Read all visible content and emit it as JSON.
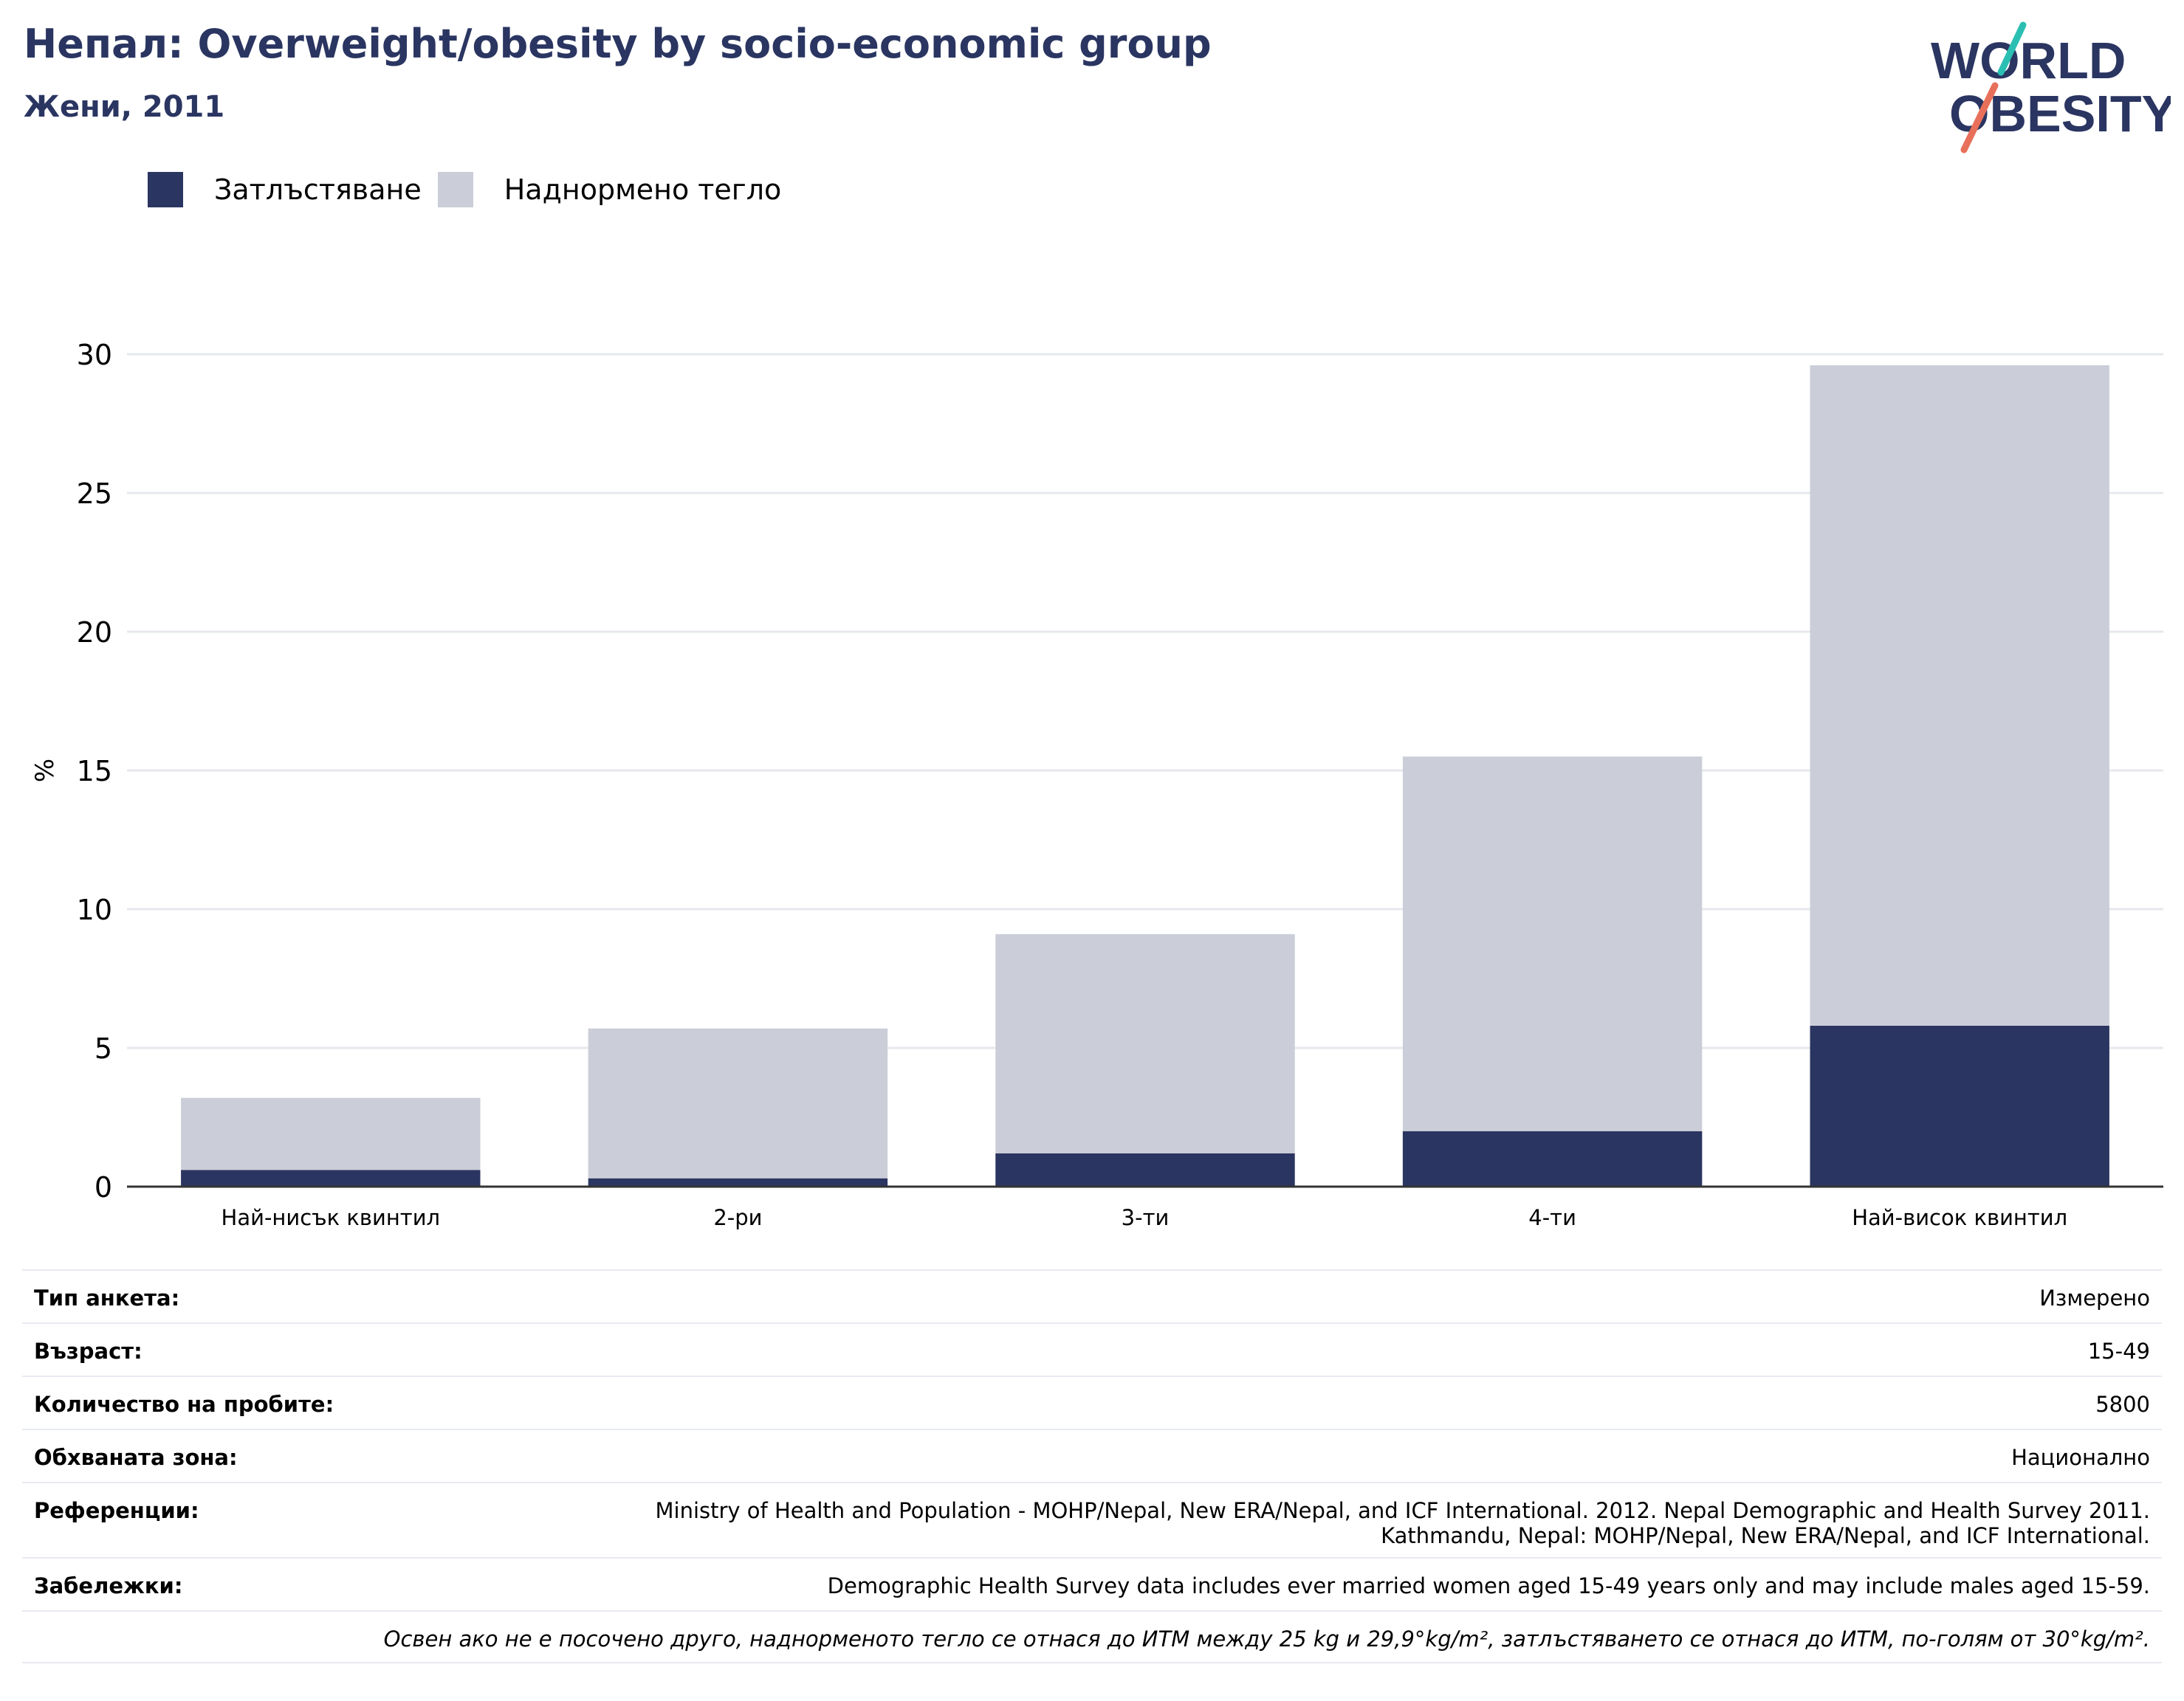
{
  "header": {
    "title": "Непал: Overweight/obesity by socio-economic group",
    "subtitle": "Жени, 2011"
  },
  "logo": {
    "line1": "WORLD",
    "line2": "OBESITY",
    "colors": {
      "text": "#2a3561",
      "slash_top": "#2bbfb3",
      "slash_bottom": "#e8705a"
    }
  },
  "colors": {
    "obesity": "#2a3561",
    "overweight": "#cbcdd8",
    "grid": "#e6e8ee",
    "axis": "#333333",
    "title": "#2a3561"
  },
  "chart_data": {
    "type": "bar",
    "stacked": true,
    "categories": [
      "Най-нисък квинтил",
      "2-ри",
      "3-ти",
      "4-ти",
      "Най-висок квинтил"
    ],
    "series": [
      {
        "name": "Затлъстяване",
        "values": [
          0.6,
          0.3,
          1.2,
          2.0,
          5.8
        ]
      },
      {
        "name": "Наднормено тегло",
        "values": [
          2.6,
          5.4,
          7.9,
          13.5,
          23.8
        ]
      }
    ],
    "ylabel": "%",
    "ylim": [
      0,
      30
    ],
    "yticks": [
      0,
      5,
      10,
      15,
      20,
      25,
      30
    ],
    "grid": true,
    "legend_position": "top-left"
  },
  "info": [
    {
      "label": "Тип анкета:",
      "value": "Измерено"
    },
    {
      "label": "Възраст:",
      "value": "15-49"
    },
    {
      "label": "Количество на пробите:",
      "value": "5800"
    },
    {
      "label": "Обхваната зона:",
      "value": "Национално"
    },
    {
      "label": "Референции:",
      "value": "Ministry of Health and Population - MOHP/Nepal, New ERA/Nepal, and ICF International. 2012. Nepal Demographic and Health Survey 2011. Kathmandu, Nepal: MOHP/Nepal, New ERA/Nepal, and ICF International."
    },
    {
      "label": "Забележки:",
      "value": "Demographic Health Survey data includes ever married women aged 15-49 years only and may include males aged 15-59."
    }
  ],
  "footnote": "Освен ако не е посочено друго, наднорменото тегло се отнася до ИТМ между 25 kg и 29,9°kg/m², затлъстяването се отнася до ИТМ, по-голям от 30°kg/m²."
}
